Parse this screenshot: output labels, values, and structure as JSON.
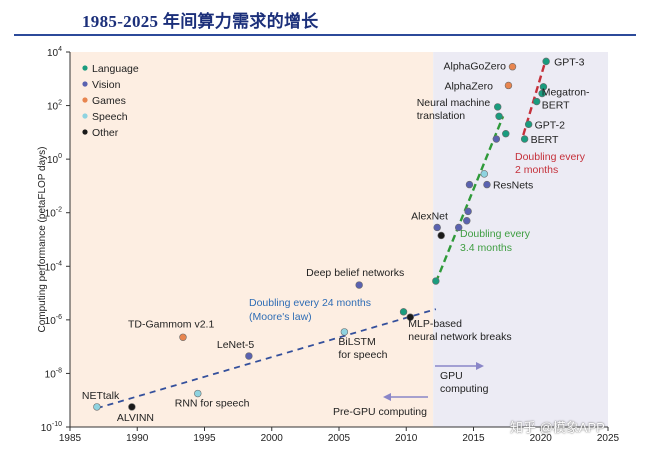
{
  "header": {
    "title": "1985-2025 年间算力需求的增长"
  },
  "watermark": "知乎 @模象APP",
  "colors": {
    "title": "#1b2f7a",
    "rule": "#2c4a9a",
    "pre_gpu_bg": "#fdeee2",
    "gpu_bg": "#ecebf4",
    "language": "#1a9c7e",
    "vision": "#5a62b0",
    "games": "#e8854f",
    "speech": "#8fd3e0",
    "other": "#1a1a1a",
    "trend_blue": "#34509c",
    "trend_green": "#2f9a3a",
    "trend_red": "#c5303a",
    "label_blue": "#2f6db5",
    "label_green": "#3f9e42",
    "label_red": "#c5303a",
    "arrow": "#8a86c8"
  },
  "chart_data": {
    "type": "scatter",
    "xlabel": "",
    "ylabel": "Computing performance (petaFLOP days)",
    "xlim": [
      1985,
      2025
    ],
    "ylim_log10": [
      -10,
      4
    ],
    "y_scale": "log",
    "x_ticks": [
      "1985",
      "1990",
      "1995",
      "2000",
      "2005",
      "2010",
      "2015",
      "2020",
      "2025"
    ],
    "y_ticks": [
      {
        "base": "10",
        "exp": "4",
        "log": 4
      },
      {
        "base": "10",
        "exp": "2",
        "log": 2
      },
      {
        "base": "10",
        "exp": "0",
        "log": 0
      },
      {
        "base": "10",
        "exp": "-2",
        "log": -2
      },
      {
        "base": "10",
        "exp": "-4",
        "log": -4
      },
      {
        "base": "10",
        "exp": "-6",
        "log": -6
      },
      {
        "base": "10",
        "exp": "-8",
        "log": -8
      },
      {
        "base": "10",
        "exp": "-10",
        "log": -10
      }
    ],
    "legend": {
      "placement": "top-left",
      "entries": [
        {
          "label": "Language",
          "category": "language"
        },
        {
          "label": "Vision",
          "category": "vision"
        },
        {
          "label": "Games",
          "category": "games"
        },
        {
          "label": "Speech",
          "category": "speech"
        },
        {
          "label": "Other",
          "category": "other"
        }
      ]
    },
    "gpu_era_start": 2012,
    "points": [
      {
        "x": 1987,
        "log_y": -9.25,
        "category": "speech",
        "label": "NETtalk"
      },
      {
        "x": 1989.6,
        "log_y": -9.25,
        "category": "other",
        "label": "ALVINN"
      },
      {
        "x": 1994.5,
        "log_y": -8.75,
        "category": "speech",
        "label": "RNN for speech"
      },
      {
        "x": 1993.4,
        "log_y": -6.65,
        "category": "games",
        "label": "TD-Gammom v2.1"
      },
      {
        "x": 1998.3,
        "log_y": -7.35,
        "category": "vision",
        "label": "LeNet-5"
      },
      {
        "x": 2005.4,
        "log_y": -6.45,
        "category": "speech",
        "label": "BiLSTM for speech"
      },
      {
        "x": 2006.5,
        "log_y": -4.7,
        "category": "vision",
        "label": "Deep belief networks"
      },
      {
        "x": 2009.8,
        "log_y": -5.7,
        "category": "language",
        "label": ""
      },
      {
        "x": 2010.3,
        "log_y": -5.9,
        "category": "other",
        "label": "MLP-based neural network breaks"
      },
      {
        "x": 2012.2,
        "log_y": -4.55,
        "category": "language",
        "label": ""
      },
      {
        "x": 2012.3,
        "log_y": -2.55,
        "category": "vision",
        "label": "AlexNet"
      },
      {
        "x": 2012.6,
        "log_y": -2.85,
        "category": "other",
        "label": ""
      },
      {
        "x": 2013.9,
        "log_y": -2.55,
        "category": "vision",
        "label": ""
      },
      {
        "x": 2014.5,
        "log_y": -2.3,
        "category": "vision",
        "label": ""
      },
      {
        "x": 2014.6,
        "log_y": -1.95,
        "category": "vision",
        "label": ""
      },
      {
        "x": 2014.7,
        "log_y": -0.95,
        "category": "vision",
        "label": ""
      },
      {
        "x": 2015.8,
        "log_y": -0.55,
        "category": "speech",
        "label": ""
      },
      {
        "x": 2016,
        "log_y": -0.95,
        "category": "vision",
        "label": "ResNets"
      },
      {
        "x": 2016.7,
        "log_y": 0.75,
        "category": "vision",
        "label": ""
      },
      {
        "x": 2016.8,
        "log_y": 1.95,
        "category": "language",
        "label": "Neural machine translation"
      },
      {
        "x": 2016.9,
        "log_y": 1.6,
        "category": "language",
        "label": ""
      },
      {
        "x": 2017.4,
        "log_y": 0.95,
        "category": "language",
        "label": ""
      },
      {
        "x": 2017.6,
        "log_y": 2.75,
        "category": "games",
        "label": "AlphaZero"
      },
      {
        "x": 2017.9,
        "log_y": 3.45,
        "category": "games",
        "label": "AlphaGoZero"
      },
      {
        "x": 2018.8,
        "log_y": 0.75,
        "category": "language",
        "label": "BERT"
      },
      {
        "x": 2019.1,
        "log_y": 1.3,
        "category": "language",
        "label": "GPT-2"
      },
      {
        "x": 2019.7,
        "log_y": 2.15,
        "category": "language",
        "label": "Megatron-BERT"
      },
      {
        "x": 2020.1,
        "log_y": 2.45,
        "category": "language",
        "label": ""
      },
      {
        "x": 2020.2,
        "log_y": 2.7,
        "category": "language",
        "label": ""
      },
      {
        "x": 2020.4,
        "log_y": 3.65,
        "category": "language",
        "label": "GPT-3"
      }
    ],
    "trends": [
      {
        "name": "Doubling every 24 months (Moore's law)",
        "color": "blue",
        "from": [
          1987,
          -9.3
        ],
        "to": [
          2012.2,
          -5.6
        ]
      },
      {
        "name": "Doubling every 3.4 months",
        "color": "green",
        "from": [
          2012.2,
          -4.6
        ],
        "to": [
          2017.2,
          1.6
        ]
      },
      {
        "name": "Doubling every 2 months",
        "color": "red",
        "from": [
          2018.7,
          0.9
        ],
        "to": [
          2020.4,
          3.75
        ]
      }
    ],
    "annotations": {
      "trend_blue_1": "Doubling every 24 months",
      "trend_blue_2": "(Moore's law)",
      "trend_green_1": "Doubling every",
      "trend_green_2": "3.4 months",
      "trend_red_1": "Doubling every",
      "trend_red_2": "2 months",
      "gpu_era": "GPU",
      "gpu_era_2": "computing",
      "pre_gpu_era": "Pre-GPU computing"
    }
  }
}
